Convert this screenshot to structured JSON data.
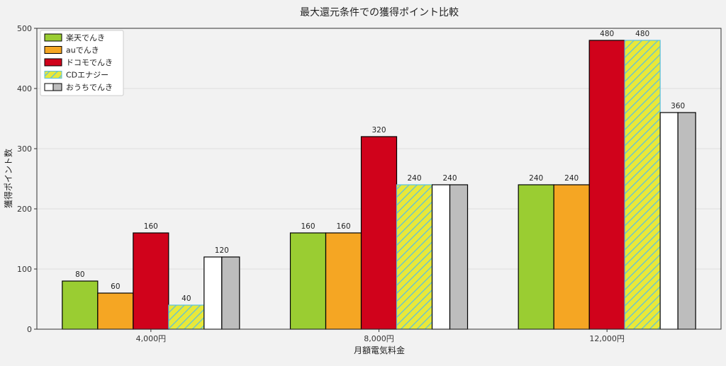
{
  "chart_data": {
    "type": "bar",
    "title": "最大還元条件での獲得ポイント比較",
    "xlabel": "月額電気料金",
    "ylabel": "獲得ポイント数",
    "categories": [
      "4,000円",
      "8,000円",
      "12,000円"
    ],
    "ylim": [
      0,
      500
    ],
    "yticks": [
      0,
      100,
      200,
      300,
      400,
      500
    ],
    "grid": "horizontal",
    "legend_position": "top-left",
    "series": [
      {
        "name": "楽天でんき",
        "values": [
          80,
          160,
          240
        ],
        "color": "#9acd32",
        "pattern": "solid",
        "stroke": "#000000"
      },
      {
        "name": "auでんき",
        "values": [
          60,
          160,
          240
        ],
        "color": "#f5a623",
        "pattern": "solid",
        "stroke": "#000000"
      },
      {
        "name": "ドコモでんき",
        "values": [
          160,
          320,
          480
        ],
        "color": "#d0021b",
        "pattern": "solid",
        "stroke": "#000000"
      },
      {
        "name": "CDエナジー",
        "values": [
          40,
          240,
          480
        ],
        "color": "#e8e83a",
        "pattern": "hatch",
        "stroke": "#5bc0de",
        "hatch_color": "#5bc0de"
      },
      {
        "name": "おうちでんき",
        "values": [
          120,
          240,
          360
        ],
        "color": "#bdbdbd",
        "pattern": "split-white",
        "stroke": "#000000"
      }
    ],
    "data_labels": [
      {
        "series": 0,
        "category": 0,
        "text": "80"
      },
      {
        "series": 1,
        "category": 0,
        "text": "60"
      },
      {
        "series": 2,
        "category": 0,
        "text": "160"
      },
      {
        "series": 3,
        "category": 0,
        "text": "40"
      },
      {
        "series": 4,
        "category": 0,
        "text": "120"
      },
      {
        "series": 0,
        "category": 1,
        "text": "160"
      },
      {
        "series": 1,
        "category": 1,
        "text": "160"
      },
      {
        "series": 2,
        "category": 1,
        "text": "320"
      },
      {
        "series": 3,
        "category": 1,
        "text": "240"
      },
      {
        "series": 4,
        "category": 1,
        "text": "240"
      },
      {
        "series": 0,
        "category": 2,
        "text": "240"
      },
      {
        "series": 1,
        "category": 2,
        "text": "240"
      },
      {
        "series": 2,
        "category": 2,
        "text": "480"
      },
      {
        "series": 3,
        "category": 2,
        "text": "480"
      },
      {
        "series": 4,
        "category": 2,
        "text": "360"
      }
    ]
  }
}
